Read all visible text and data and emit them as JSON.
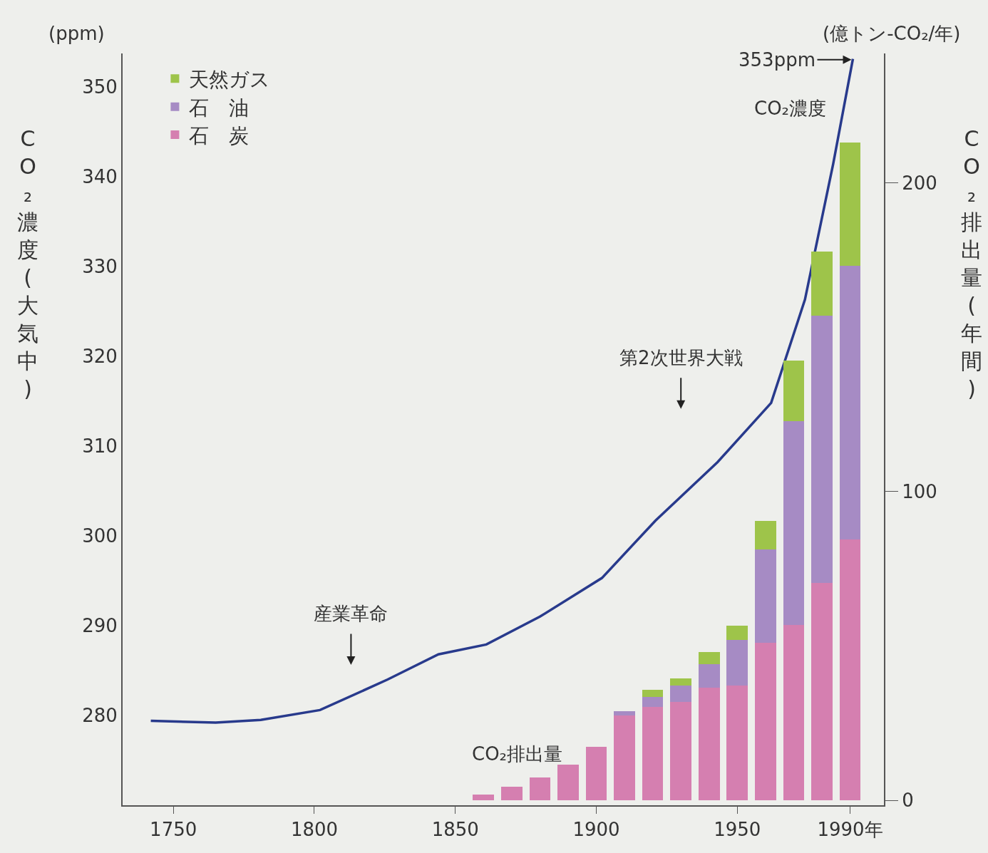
{
  "chart_data": {
    "type": "bar",
    "stacked": true,
    "ylabel": "CO₂濃度(大気中)",
    "y2label": "CO₂排出量(年間)",
    "x": [
      1860,
      1870,
      1880,
      1890,
      1900,
      1910,
      1920,
      1930,
      1940,
      1950,
      1960,
      1970,
      1980,
      1990
    ],
    "series": [
      {
        "name": "石　炭",
        "color": "#d57fb0",
        "axis": "y2",
        "values": [
          1.8,
          4.4,
          7.4,
          11.5,
          17.3,
          27.5,
          30.3,
          31.9,
          36.5,
          37.2,
          51.0,
          56.8,
          70.4,
          84.5
        ]
      },
      {
        "name": "石　油",
        "color": "#a68bc4",
        "axis": "y2",
        "values": [
          null,
          null,
          null,
          null,
          null,
          1.4,
          3.2,
          5.3,
          7.6,
          14.8,
          30.3,
          66.1,
          86.6,
          88.7
        ]
      },
      {
        "name": "天然ガス",
        "color": "#9ec44a",
        "axis": "y2",
        "values": [
          null,
          null,
          null,
          null,
          null,
          null,
          2.3,
          2.3,
          3.9,
          4.6,
          9.2,
          19.6,
          20.8,
          40.0
        ]
      },
      {
        "name": "CO₂濃度",
        "type": "line",
        "color": "#283a8c",
        "axis": "y",
        "x": [
          1742,
          1765,
          1781,
          1802,
          1826,
          1844,
          1861,
          1880,
          1902,
          1921,
          1943,
          1962,
          1974,
          1984,
          1991
        ],
        "values": [
          279.4,
          279.2,
          279.5,
          280.6,
          284.0,
          286.8,
          287.9,
          291.0,
          295.3,
          301.7,
          308.2,
          314.8,
          326.3,
          341.4,
          353.1
        ]
      }
    ],
    "xlim": [
      1732,
      2002
    ],
    "xticks": [
      1750,
      1800,
      1850,
      1900,
      1950,
      {
        "value": 1990,
        "label": "1990年"
      }
    ],
    "ylim": [
      270,
      353.7
    ],
    "yticks": [
      280,
      290,
      300,
      310,
      320,
      330,
      340,
      350
    ],
    "y2lim": [
      -1.6,
      242
    ],
    "y2ticks": [
      0,
      100,
      200
    ],
    "annotations": [
      {
        "text": "353ppm",
        "x": 1991,
        "y": 353
      },
      "第2次世界大戦",
      "産業革命",
      "CO₂排出量",
      "(ppm)",
      "(億トン-CO₂/年)"
    ],
    "legend": "top left",
    "grid": false,
    "marker": "none",
    "line_style": "solid"
  }
}
